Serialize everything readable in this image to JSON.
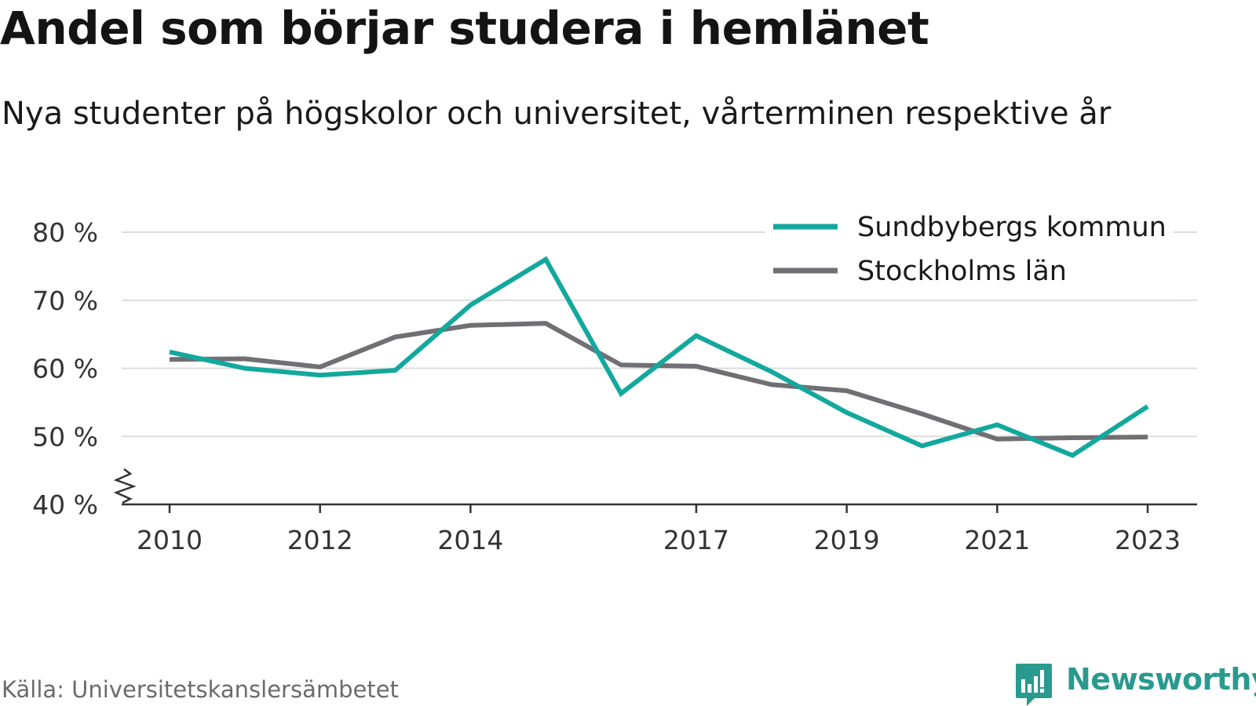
{
  "title": "Andel som börjar studera i hemlänet",
  "subtitle": "Nya studenter på högskolor och universitet, vårterminen respektive år",
  "source": "Källa: Universitetskanslersämbetet",
  "brand": {
    "name": "Newsworthy",
    "icon": "newsworthy-logo-icon",
    "color": "#2a9a8f"
  },
  "chart_data": {
    "type": "line",
    "x": [
      2010,
      2011,
      2012,
      2013,
      2014,
      2015,
      2016,
      2017,
      2018,
      2019,
      2020,
      2021,
      2022,
      2023
    ],
    "x_tick_labels": [
      "2010",
      "2012",
      "2014",
      "2017",
      "2019",
      "2021",
      "2023"
    ],
    "y_tick_labels": [
      "80 %",
      "70 %",
      "60 %",
      "50 %",
      "40 %"
    ],
    "ylim": [
      40,
      80
    ],
    "y_ticks": [
      40,
      50,
      60,
      70,
      80
    ],
    "y_axis_break": true,
    "grid": true,
    "legend_position": "top-right",
    "series": [
      {
        "name": "Sundbybergs kommun",
        "color": "#13a89e",
        "values": [
          62.4,
          60.0,
          59.0,
          59.7,
          69.3,
          76.0,
          56.3,
          64.8,
          59.5,
          53.5,
          48.6,
          51.7,
          47.2,
          54.4
        ]
      },
      {
        "name": "Stockholms län",
        "color": "#707074",
        "values": [
          61.3,
          61.4,
          60.2,
          64.6,
          66.3,
          66.6,
          60.5,
          60.3,
          57.6,
          56.7,
          53.3,
          49.6,
          49.8,
          49.9
        ]
      }
    ]
  }
}
